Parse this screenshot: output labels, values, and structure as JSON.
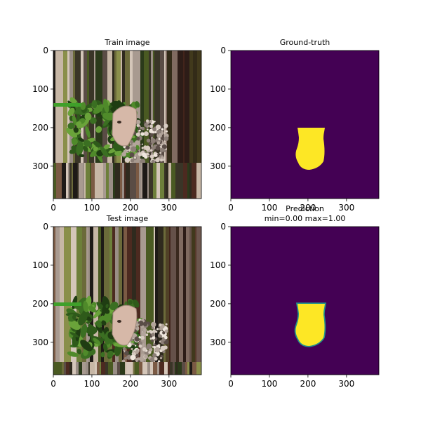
{
  "figure": {
    "panels": [
      {
        "id": "train-image",
        "title_lines": [
          "Train image"
        ],
        "kind": "photo",
        "shift": 0
      },
      {
        "id": "ground-truth",
        "title_lines": [
          "Ground-truth"
        ],
        "kind": "mask",
        "soft_edge": false
      },
      {
        "id": "test-image",
        "title_lines": [
          "Test image"
        ],
        "kind": "photo",
        "shift": 60
      },
      {
        "id": "prediction",
        "title_lines": [
          "Prediction",
          "min=0.00 max=1.00"
        ],
        "kind": "mask",
        "soft_edge": true
      }
    ],
    "colors": {
      "mask_background": "#440154",
      "mask_foreground": "#fde725",
      "mask_edge": "#21918c"
    }
  },
  "chart_data": [
    {
      "type": "heatmap",
      "title": "Train image",
      "x_ticks": [
        0,
        100,
        200,
        300
      ],
      "y_ticks": [
        0,
        100,
        200,
        300
      ],
      "xlim": [
        0,
        384
      ],
      "ylim": [
        384,
        0
      ]
    },
    {
      "type": "heatmap",
      "title": "Ground-truth",
      "x_ticks": [
        0,
        100,
        200,
        300
      ],
      "y_ticks": [
        0,
        100,
        200,
        300
      ],
      "xlim": [
        0,
        384
      ],
      "ylim": [
        384,
        0
      ],
      "mask_value_range": [
        0,
        1
      ]
    },
    {
      "type": "heatmap",
      "title": "Test image",
      "x_ticks": [
        0,
        100,
        200,
        300
      ],
      "y_ticks": [
        0,
        100,
        200,
        300
      ],
      "xlim": [
        0,
        384
      ],
      "ylim": [
        384,
        0
      ]
    },
    {
      "type": "heatmap",
      "title": "Prediction",
      "subtitle": "min=0.00 max=1.00",
      "x_ticks": [
        0,
        100,
        200,
        300
      ],
      "y_ticks": [
        0,
        100,
        200,
        300
      ],
      "xlim": [
        0,
        384
      ],
      "ylim": [
        384,
        0
      ],
      "value_min": 0.0,
      "value_max": 1.0
    }
  ]
}
